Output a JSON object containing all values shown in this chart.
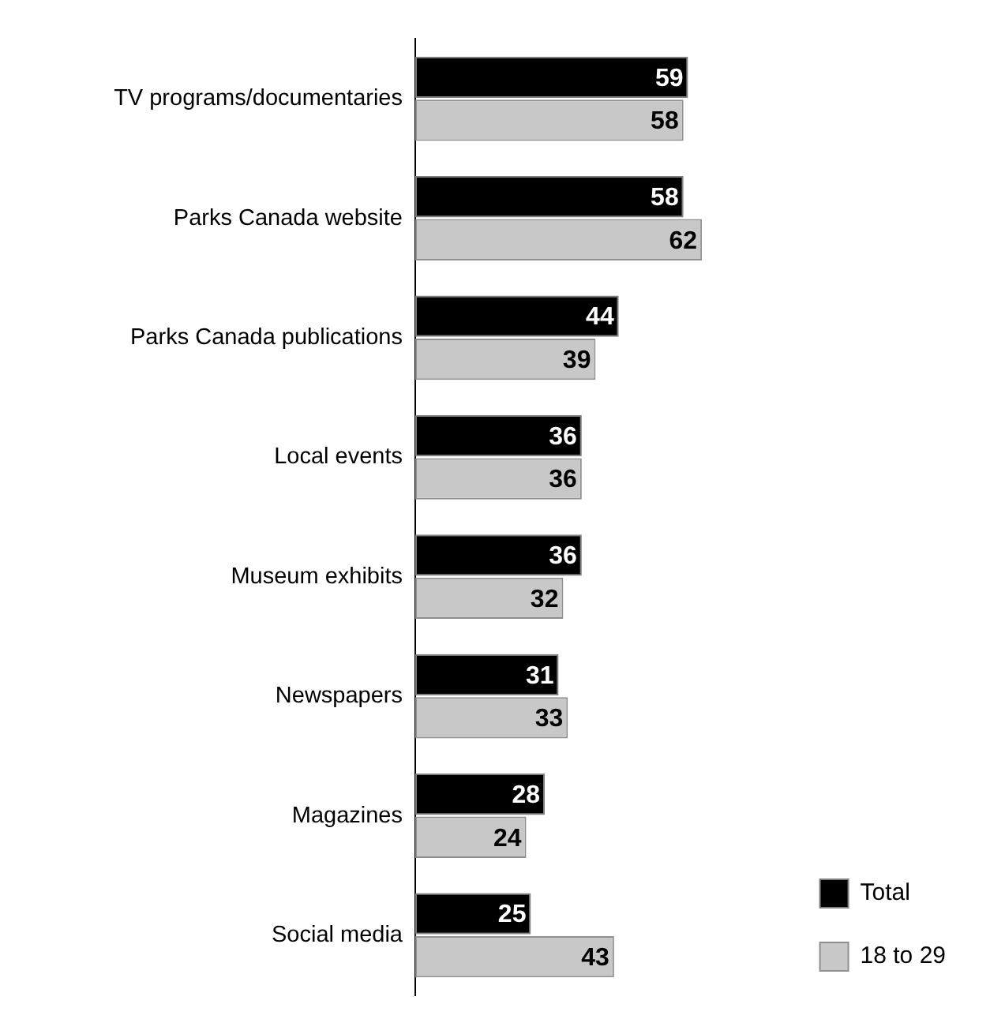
{
  "chart_data": {
    "type": "bar",
    "orientation": "horizontal",
    "categories": [
      "TV programs/documentaries",
      "Parks Canada website",
      "Parks Canada publications",
      "Local events",
      "Museum exhibits",
      "Newspapers",
      "Magazines",
      "Social media"
    ],
    "series": [
      {
        "name": "Total",
        "color": "#000000",
        "values": [
          59,
          58,
          44,
          36,
          36,
          31,
          28,
          25
        ]
      },
      {
        "name": "18 to 29",
        "color": "#c8c8c8",
        "values": [
          58,
          62,
          39,
          36,
          32,
          33,
          24,
          43
        ]
      }
    ],
    "data_labels": true,
    "legend": "bottom right"
  }
}
